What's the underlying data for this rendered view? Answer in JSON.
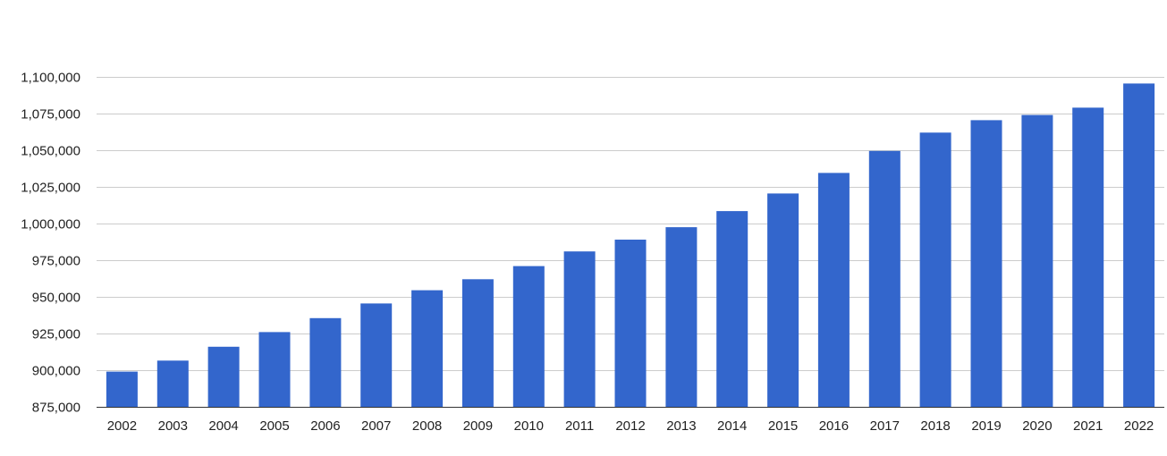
{
  "chart_data": {
    "type": "bar",
    "title": "",
    "xlabel": "",
    "ylabel": "",
    "ylim": [
      875000,
      1100000
    ],
    "yticks": [
      875000,
      900000,
      925000,
      950000,
      975000,
      1000000,
      1025000,
      1050000,
      1075000,
      1100000
    ],
    "ytick_labels": [
      "875,000",
      "900,000",
      "925,000",
      "950,000",
      "975,000",
      "1,000,000",
      "1,025,000",
      "1,050,000",
      "1,075,000",
      "1,100,000"
    ],
    "categories": [
      "2002",
      "2003",
      "2004",
      "2005",
      "2006",
      "2007",
      "2008",
      "2009",
      "2010",
      "2011",
      "2012",
      "2013",
      "2014",
      "2015",
      "2016",
      "2017",
      "2018",
      "2019",
      "2020",
      "2021",
      "2022"
    ],
    "values": [
      899000,
      906500,
      916000,
      926000,
      935500,
      945500,
      954500,
      962000,
      971000,
      981000,
      989000,
      997500,
      1008500,
      1020500,
      1034500,
      1049500,
      1062000,
      1070500,
      1074000,
      1079000,
      1095500
    ],
    "grid": true,
    "bar_color": "#3366cc",
    "grid_color": "#cccccc"
  }
}
